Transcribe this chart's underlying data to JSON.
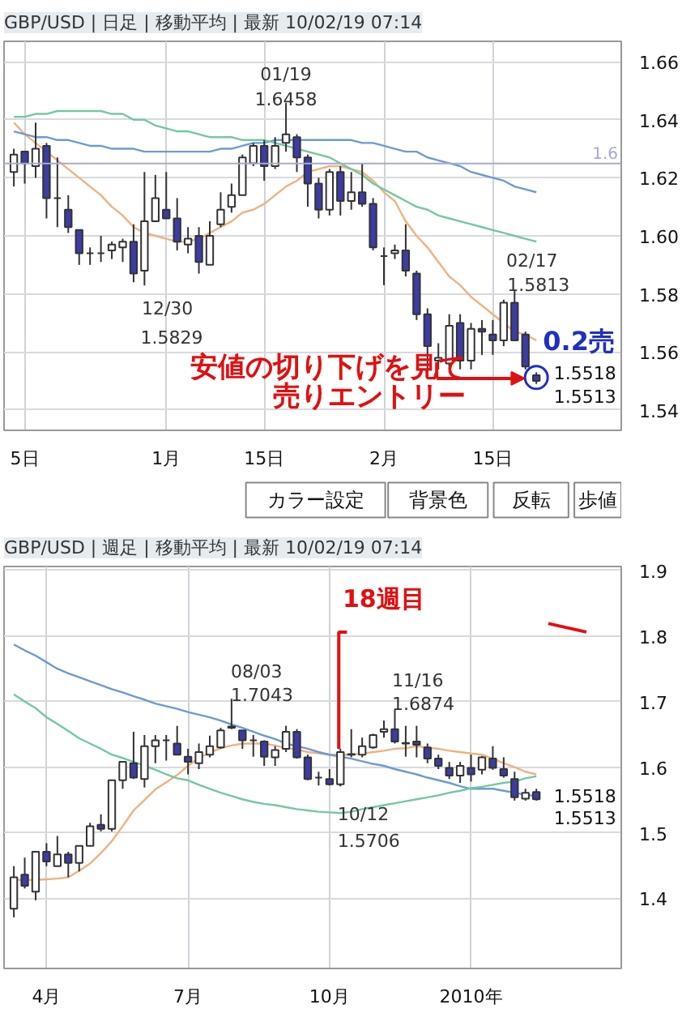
{
  "chart_data": [
    {
      "type": "candlestick",
      "title": "GBP/USD | 日足 | 移動平均 | 最新 10/02/19 07:14",
      "categories": [
        null,
        "5日",
        null,
        null,
        null,
        null,
        null,
        null,
        null,
        null,
        null,
        null,
        null,
        null,
        "1月",
        null,
        null,
        null,
        null,
        null,
        null,
        null,
        null,
        "15日",
        null,
        null,
        null,
        null,
        null,
        null,
        null,
        null,
        null,
        null,
        "2月",
        null,
        null,
        null,
        null,
        null,
        null,
        null,
        null,
        null,
        "15日",
        null,
        null,
        null,
        null
      ],
      "ohlc": [
        [
          1.622,
          1.63,
          1.617,
          1.628
        ],
        [
          1.629,
          1.629,
          1.618,
          1.625
        ],
        [
          1.624,
          1.639,
          1.62,
          1.63
        ],
        [
          1.631,
          1.632,
          1.606,
          1.613
        ],
        [
          1.613,
          1.627,
          1.603,
          1.613
        ],
        [
          1.609,
          1.614,
          1.601,
          1.603
        ],
        [
          1.602,
          1.602,
          1.59,
          1.594
        ],
        [
          1.594,
          1.596,
          1.59,
          1.594
        ],
        [
          1.594,
          1.6,
          1.591,
          1.594
        ],
        [
          1.595,
          1.598,
          1.592,
          1.597
        ],
        [
          1.596,
          1.599,
          1.591,
          1.598
        ],
        [
          1.598,
          1.604,
          1.584,
          1.587
        ],
        [
          1.588,
          1.622,
          1.5829,
          1.605
        ],
        [
          1.605,
          1.621,
          1.605,
          1.613
        ],
        [
          1.609,
          1.622,
          1.606,
          1.606
        ],
        [
          1.606,
          1.613,
          1.595,
          1.598
        ],
        [
          1.597,
          1.603,
          1.594,
          1.599
        ],
        [
          1.6,
          1.603,
          1.587,
          1.591
        ],
        [
          1.59,
          1.605,
          1.59,
          1.6
        ],
        [
          1.604,
          1.615,
          1.603,
          1.609
        ],
        [
          1.61,
          1.618,
          1.608,
          1.614
        ],
        [
          1.614,
          1.628,
          1.614,
          1.627
        ],
        [
          1.625,
          1.632,
          1.624,
          1.631
        ],
        [
          1.631,
          1.633,
          1.619,
          1.624
        ],
        [
          1.624,
          1.634,
          1.623,
          1.631
        ],
        [
          1.632,
          1.6458,
          1.629,
          1.635
        ],
        [
          1.634,
          1.635,
          1.622,
          1.627
        ],
        [
          1.627,
          1.628,
          1.61,
          1.618
        ],
        [
          1.618,
          1.62,
          1.606,
          1.609
        ],
        [
          1.609,
          1.623,
          1.607,
          1.622
        ],
        [
          1.622,
          1.624,
          1.607,
          1.612
        ],
        [
          1.612,
          1.622,
          1.609,
          1.615
        ],
        [
          1.615,
          1.625,
          1.61,
          1.611
        ],
        [
          1.611,
          1.613,
          1.595,
          1.596
        ],
        [
          1.593,
          1.596,
          1.583,
          1.593
        ],
        [
          1.594,
          1.597,
          1.592,
          1.595
        ],
        [
          1.595,
          1.604,
          1.586,
          1.588
        ],
        [
          1.587,
          1.588,
          1.571,
          1.573
        ],
        [
          1.573,
          1.575,
          1.554,
          1.562
        ],
        [
          1.557,
          1.563,
          1.554,
          1.558
        ],
        [
          1.556,
          1.573,
          1.554,
          1.569
        ],
        [
          1.57,
          1.573,
          1.554,
          1.557
        ],
        [
          1.557,
          1.57,
          1.554,
          1.568
        ],
        [
          1.568,
          1.571,
          1.559,
          1.567
        ],
        [
          1.566,
          1.571,
          1.559,
          1.564
        ],
        [
          1.564,
          1.578,
          1.562,
          1.577
        ],
        [
          1.577,
          1.5813,
          1.564,
          1.564
        ],
        [
          1.566,
          1.567,
          1.554,
          1.555
        ],
        [
          1.552,
          1.553,
          1.549,
          1.55
        ]
      ],
      "colors": [
        "#ffffff",
        "#3c3ca4",
        "#ffffff",
        "#3c3ca4",
        "#333333",
        "#3c3ca4",
        "#3c3ca4",
        "#333333",
        "#333333",
        "#ffffff",
        "#ffffff",
        "#3c3ca4",
        "#ffffff",
        "#ffffff",
        "#3c3ca4",
        "#3c3ca4",
        "#ffffff",
        "#3c3ca4",
        "#ffffff",
        "#ffffff",
        "#ffffff",
        "#ffffff",
        "#ffffff",
        "#3c3ca4",
        "#ffffff",
        "#ffffff",
        "#3c3ca4",
        "#3c3ca4",
        "#3c3ca4",
        "#ffffff",
        "#3c3ca4",
        "#ffffff",
        "#3c3ca4",
        "#3c3ca4",
        "#333333",
        "#ffffff",
        "#3c3ca4",
        "#3c3ca4",
        "#3c3ca4",
        "#ffffff",
        "#ffffff",
        "#3c3ca4",
        "#ffffff",
        "#3c3ca4",
        "#3c3ca4",
        "#ffffff",
        "#3c3ca4",
        "#3c3ca4",
        "#3c3ca4"
      ],
      "series": [
        {
          "type": "line",
          "color": "#f0b27f",
          "values": [
            1.639,
            1.635,
            1.632,
            1.629,
            1.626,
            1.623,
            1.62,
            1.617,
            1.614,
            1.61,
            1.607,
            1.603,
            1.601,
            1.6,
            1.599,
            1.598,
            1.598,
            1.599,
            1.601,
            1.603,
            1.605,
            1.608,
            1.609,
            1.611,
            1.614,
            1.617,
            1.619,
            1.622,
            1.623,
            1.624,
            1.624,
            1.623,
            1.622,
            1.619,
            1.615,
            1.612,
            1.605,
            1.6,
            1.596,
            1.591,
            1.586,
            1.583,
            1.579,
            1.576,
            1.573,
            1.57,
            1.567,
            1.566,
            1.564
          ]
        },
        {
          "type": "line",
          "color": "#6c9bd2",
          "values": [
            1.636,
            1.635,
            1.634,
            1.634,
            1.633,
            1.633,
            1.632,
            1.631,
            1.631,
            1.63,
            1.63,
            1.63,
            1.629,
            1.629,
            1.629,
            1.629,
            1.629,
            1.629,
            1.629,
            1.63,
            1.63,
            1.631,
            1.632,
            1.632,
            1.633,
            1.633,
            1.633,
            1.633,
            1.633,
            1.633,
            1.633,
            1.633,
            1.632,
            1.632,
            1.631,
            1.63,
            1.629,
            1.629,
            1.627,
            1.626,
            1.625,
            1.624,
            1.622,
            1.621,
            1.62,
            1.619,
            1.617,
            1.616,
            1.615
          ]
        },
        {
          "type": "line",
          "color": "#72c9a0",
          "values": [
            1.641,
            1.641,
            1.642,
            1.642,
            1.643,
            1.643,
            1.643,
            1.643,
            1.643,
            1.642,
            1.642,
            1.64,
            1.64,
            1.638,
            1.637,
            1.636,
            1.636,
            1.635,
            1.634,
            1.634,
            1.634,
            1.633,
            1.633,
            1.633,
            1.632,
            1.631,
            1.63,
            1.629,
            1.628,
            1.627,
            1.625,
            1.623,
            1.621,
            1.618,
            1.616,
            1.614,
            1.612,
            1.61,
            1.609,
            1.607,
            1.606,
            1.605,
            1.604,
            1.603,
            1.602,
            1.601,
            1.6,
            1.599,
            1.598
          ]
        }
      ],
      "ylim": [
        1.533,
        1.667
      ],
      "yticks": [
        1.54,
        1.56,
        1.58,
        {
          "value": 1.6,
          "label": "1.60"
        },
        1.62,
        1.64,
        1.66
      ],
      "grid": true,
      "ref_lines": [
        {
          "axis": "y",
          "value": 1.6249,
          "label": "1.6",
          "color": "#a8a8d8"
        }
      ],
      "annotations": [
        "01/19",
        "1.6458",
        "12/30",
        "1.5829",
        "02/17",
        "1.5813",
        "0.2売",
        "安値の切り下げを見て",
        "売りエントリー",
        "1.5518",
        "1.5513",
        "カラー設定",
        "背景色",
        "反転",
        "歩値"
      ]
    },
    {
      "type": "candlestick",
      "title": "GBP/USD | 週足 | 移動平均 | 最新 10/02/19 07:14",
      "categories": [
        null,
        null,
        null,
        "4月",
        null,
        null,
        null,
        null,
        null,
        null,
        null,
        null,
        null,
        null,
        null,
        null,
        "7月",
        null,
        null,
        null,
        null,
        null,
        null,
        null,
        null,
        null,
        null,
        null,
        null,
        "10月",
        null,
        null,
        null,
        null,
        null,
        null,
        null,
        null,
        null,
        null,
        null,
        null,
        "2010年",
        null,
        null,
        null,
        null,
        null,
        null
      ],
      "ohlc": [
        [
          1.384,
          1.449,
          1.371,
          1.432
        ],
        [
          1.436,
          1.462,
          1.415,
          1.419
        ],
        [
          1.41,
          1.471,
          1.397,
          1.471
        ],
        [
          1.471,
          1.484,
          1.449,
          1.456
        ],
        [
          1.449,
          1.495,
          1.449,
          1.467
        ],
        [
          1.467,
          1.471,
          1.432,
          1.454
        ],
        [
          1.454,
          1.48,
          1.441,
          1.48
        ],
        [
          1.48,
          1.515,
          1.48,
          1.51
        ],
        [
          1.512,
          1.528,
          1.502,
          1.506
        ],
        [
          1.506,
          1.58,
          1.502,
          1.58
        ],
        [
          1.58,
          1.608,
          1.567,
          1.608
        ],
        [
          1.606,
          1.654,
          1.582,
          1.584
        ],
        [
          1.582,
          1.649,
          1.569,
          1.632
        ],
        [
          1.632,
          1.649,
          1.606,
          1.641
        ],
        [
          1.641,
          1.649,
          1.61,
          1.641
        ],
        [
          1.636,
          1.663,
          1.619,
          1.619
        ],
        [
          1.616,
          1.628,
          1.589,
          1.608
        ],
        [
          1.606,
          1.636,
          1.597,
          1.623
        ],
        [
          1.619,
          1.648,
          1.615,
          1.632
        ],
        [
          1.63,
          1.66,
          1.628,
          1.656
        ],
        [
          1.662,
          1.7043,
          1.658,
          1.66
        ],
        [
          1.656,
          1.656,
          1.628,
          1.641
        ],
        [
          1.641,
          1.649,
          1.616,
          1.641
        ],
        [
          1.639,
          1.641,
          1.602,
          1.616
        ],
        [
          1.615,
          1.632,
          1.602,
          1.626
        ],
        [
          1.628,
          1.663,
          1.623,
          1.654
        ],
        [
          1.654,
          1.658,
          1.613,
          1.615
        ],
        [
          1.615,
          1.619,
          1.58,
          1.582
        ],
        [
          1.584,
          1.593,
          1.572,
          1.584
        ],
        [
          1.582,
          1.597,
          1.572,
          1.574
        ],
        [
          1.574,
          1.628,
          1.5706,
          1.623
        ],
        [
          1.62,
          1.658,
          1.615,
          1.619
        ],
        [
          1.619,
          1.645,
          1.615,
          1.632
        ],
        [
          1.63,
          1.651,
          1.628,
          1.649
        ],
        [
          1.654,
          1.671,
          1.645,
          1.658
        ],
        [
          1.658,
          1.6874,
          1.636,
          1.639
        ],
        [
          1.637,
          1.663,
          1.616,
          1.636
        ],
        [
          1.639,
          1.663,
          1.615,
          1.634
        ],
        [
          1.63,
          1.636,
          1.606,
          1.613
        ],
        [
          1.613,
          1.619,
          1.597,
          1.602
        ],
        [
          1.599,
          1.608,
          1.582,
          1.587
        ],
        [
          1.587,
          1.608,
          1.576,
          1.602
        ],
        [
          1.599,
          1.619,
          1.578,
          1.589
        ],
        [
          1.596,
          1.617,
          1.589,
          1.615
        ],
        [
          1.613,
          1.632,
          1.596,
          1.599
        ],
        [
          1.597,
          1.615,
          1.584,
          1.587
        ],
        [
          1.582,
          1.593,
          1.549,
          1.554
        ],
        [
          1.552,
          1.567,
          1.549,
          1.561
        ],
        [
          1.562,
          1.567,
          1.549,
          1.551
        ]
      ],
      "colors": [
        "#ffffff",
        "#3c3ca4",
        "#ffffff",
        "#3c3ca4",
        "#ffffff",
        "#3c3ca4",
        "#ffffff",
        "#ffffff",
        "#3c3ca4",
        "#ffffff",
        "#ffffff",
        "#3c3ca4",
        "#ffffff",
        "#ffffff",
        "#333333",
        "#3c3ca4",
        "#3c3ca4",
        "#ffffff",
        "#ffffff",
        "#ffffff",
        "#3c3ca4",
        "#3c3ca4",
        "#333333",
        "#3c3ca4",
        "#ffffff",
        "#ffffff",
        "#3c3ca4",
        "#3c3ca4",
        "#333333",
        "#3c3ca4",
        "#ffffff",
        "#3c3ca4",
        "#ffffff",
        "#ffffff",
        "#ffffff",
        "#3c3ca4",
        "#3c3ca4",
        "#3c3ca4",
        "#3c3ca4",
        "#3c3ca4",
        "#3c3ca4",
        "#ffffff",
        "#3c3ca4",
        "#ffffff",
        "#3c3ca4",
        "#3c3ca4",
        "#3c3ca4",
        "#ffffff",
        "#3c3ca4"
      ],
      "series": [
        {
          "type": "line",
          "color": "#f0b27f",
          "values": [
            1.428,
            1.428,
            1.428,
            1.429,
            1.43,
            1.432,
            1.442,
            1.453,
            1.469,
            1.487,
            1.51,
            1.534,
            1.55,
            1.566,
            1.577,
            1.588,
            1.602,
            1.614,
            1.622,
            1.629,
            1.633,
            1.636,
            1.636,
            1.636,
            1.633,
            1.629,
            1.627,
            1.623,
            1.621,
            1.619,
            1.619,
            1.619,
            1.621,
            1.623,
            1.625,
            1.628,
            1.629,
            1.632,
            1.63,
            1.628,
            1.625,
            1.623,
            1.621,
            1.619,
            1.613,
            1.606,
            1.6,
            1.593,
            1.589
          ]
        },
        {
          "type": "line",
          "color": "#6c9bd2",
          "values": [
            1.787,
            1.778,
            1.77,
            1.76,
            1.75,
            1.743,
            1.737,
            1.731,
            1.725,
            1.719,
            1.714,
            1.708,
            1.703,
            1.697,
            1.693,
            1.689,
            1.684,
            1.68,
            1.676,
            1.671,
            1.665,
            1.66,
            1.654,
            1.648,
            1.643,
            1.636,
            1.632,
            1.628,
            1.623,
            1.619,
            1.616,
            1.613,
            1.609,
            1.605,
            1.602,
            1.597,
            1.593,
            1.589,
            1.584,
            1.58,
            1.576,
            1.571,
            1.567,
            1.567,
            1.567,
            1.564,
            1.561,
            1.558,
            1.556
          ]
        },
        {
          "type": "line",
          "color": "#72c9a0",
          "values": [
            1.711,
            1.7,
            1.69,
            1.676,
            1.666,
            1.655,
            1.644,
            1.636,
            1.628,
            1.619,
            1.614,
            1.608,
            1.602,
            1.596,
            1.589,
            1.583,
            1.58,
            1.573,
            1.567,
            1.561,
            1.556,
            1.551,
            1.547,
            1.544,
            1.542,
            1.539,
            1.536,
            1.534,
            1.532,
            1.531,
            1.53,
            1.532,
            1.536,
            1.539,
            1.542,
            1.545,
            1.548,
            1.551,
            1.554,
            1.557,
            1.561,
            1.564,
            1.568,
            1.57,
            1.573,
            1.576,
            1.578,
            1.583,
            1.586
          ]
        }
      ],
      "ylim": [
        1.293,
        1.906
      ],
      "yticks": [
        1.4,
        1.5,
        1.6,
        1.7,
        1.8,
        1.9
      ],
      "grid": true,
      "annotations": [
        "18週目",
        "08/03",
        "1.7043",
        "11/16",
        "1.6874",
        "10/12",
        "1.5706",
        "1.5518",
        "1.5513"
      ]
    }
  ]
}
